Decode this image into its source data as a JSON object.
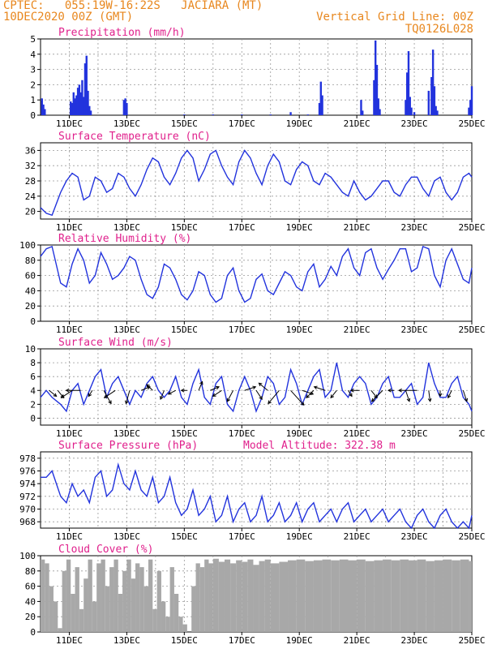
{
  "header": {
    "line1": "CPTEC:   055:19W-16:22S   JACIARA (MT)",
    "line2": "10DEC2020 00Z (GMT)",
    "right1": "Vertical Grid Line: 00Z",
    "right2": "TQ0126L028"
  },
  "colors": {
    "header": "#e8871e",
    "panel_title": "#e0208c",
    "line": "#2233dd",
    "bar": "#2233dd",
    "cloud": "#a8a8a8",
    "arrow": "#000000",
    "grid": "#999999"
  },
  "x_ticks": [
    "11DEC",
    "13DEC",
    "15DEC",
    "17DEC",
    "19DEC",
    "21DEC",
    "23DEC",
    "25DEC"
  ],
  "x_range_days": [
    10,
    25
  ],
  "chart_data": [
    {
      "type": "bar",
      "title": "Precipitation (mm/h)",
      "ylim": [
        0,
        5
      ],
      "yticks": [
        0,
        1,
        2,
        3,
        4,
        5
      ],
      "x": [
        10.05,
        10.1,
        10.15,
        11.05,
        11.1,
        11.15,
        11.2,
        11.25,
        11.3,
        11.35,
        11.4,
        11.45,
        11.5,
        11.55,
        11.6,
        11.65,
        11.7,
        11.75,
        12.9,
        12.95,
        13.0,
        15.0,
        16.0,
        17.0,
        18.0,
        18.7,
        19.3,
        19.7,
        19.75,
        19.8,
        21.15,
        21.2,
        21.6,
        21.65,
        21.7,
        21.75,
        21.8,
        22.7,
        22.75,
        22.8,
        22.85,
        22.9,
        23.0,
        23.5,
        23.6,
        23.65,
        23.7,
        23.75,
        23.8,
        24.9,
        24.95,
        25.0
      ],
      "values": [
        1.1,
        0.7,
        0.4,
        0.9,
        0.8,
        1.5,
        1.1,
        1.3,
        1.8,
        2.0,
        1.5,
        2.3,
        1.2,
        3.4,
        3.9,
        1.6,
        0.6,
        0.3,
        1.0,
        1.1,
        0.8,
        0.05,
        0.05,
        0.05,
        0.05,
        0.2,
        0.05,
        0.8,
        2.2,
        1.3,
        1.0,
        0.3,
        2.3,
        4.9,
        3.3,
        1.1,
        0.4,
        1.0,
        2.8,
        4.2,
        1.2,
        0.5,
        0.2,
        1.6,
        2.5,
        4.3,
        1.9,
        0.6,
        0.3,
        0.5,
        1.0,
        1.9
      ]
    },
    {
      "type": "line",
      "title": "Surface Temperature (nC)",
      "ylim": [
        18,
        38
      ],
      "yticks": [
        20,
        24,
        28,
        32,
        36
      ],
      "x": [
        10.0,
        10.2,
        10.4,
        10.7,
        10.9,
        11.1,
        11.3,
        11.5,
        11.7,
        11.9,
        12.1,
        12.3,
        12.5,
        12.7,
        12.9,
        13.1,
        13.3,
        13.5,
        13.7,
        13.9,
        14.1,
        14.3,
        14.5,
        14.7,
        14.9,
        15.1,
        15.3,
        15.5,
        15.7,
        15.9,
        16.1,
        16.3,
        16.5,
        16.7,
        16.9,
        17.1,
        17.3,
        17.5,
        17.7,
        17.9,
        18.1,
        18.3,
        18.5,
        18.7,
        18.9,
        19.1,
        19.3,
        19.5,
        19.7,
        19.9,
        20.1,
        20.3,
        20.5,
        20.7,
        20.9,
        21.1,
        21.3,
        21.5,
        21.7,
        21.9,
        22.1,
        22.3,
        22.5,
        22.7,
        22.9,
        23.1,
        23.3,
        23.5,
        23.7,
        23.9,
        24.1,
        24.3,
        24.5,
        24.7,
        24.9,
        25.0
      ],
      "values": [
        21,
        19.5,
        19,
        25,
        28,
        30,
        29,
        23,
        24,
        29,
        28,
        25,
        26,
        30,
        29,
        26,
        24,
        27,
        31,
        34,
        33,
        29,
        27,
        30,
        34,
        36,
        34,
        28,
        31,
        35,
        36,
        32,
        29,
        27,
        33,
        36,
        34,
        30,
        27,
        32,
        35,
        33,
        28,
        27,
        31,
        33,
        32,
        28,
        27,
        30,
        29,
        27,
        25,
        24,
        28,
        25,
        23,
        24,
        26,
        28,
        28,
        25,
        24,
        27,
        29,
        29,
        26,
        24,
        28,
        29,
        25,
        23,
        25,
        29,
        30,
        29
      ]
    },
    {
      "type": "line",
      "title": "Relative Humidity (%)",
      "ylim": [
        0,
        100
      ],
      "yticks": [
        0,
        20,
        40,
        60,
        80,
        100
      ],
      "x": [
        10.0,
        10.2,
        10.4,
        10.7,
        10.9,
        11.1,
        11.3,
        11.5,
        11.7,
        11.9,
        12.1,
        12.3,
        12.5,
        12.7,
        12.9,
        13.1,
        13.3,
        13.5,
        13.7,
        13.9,
        14.1,
        14.3,
        14.5,
        14.7,
        14.9,
        15.1,
        15.3,
        15.5,
        15.7,
        15.9,
        16.1,
        16.3,
        16.5,
        16.7,
        16.9,
        17.1,
        17.3,
        17.5,
        17.7,
        17.9,
        18.1,
        18.3,
        18.5,
        18.7,
        18.9,
        19.1,
        19.3,
        19.5,
        19.7,
        19.9,
        20.1,
        20.3,
        20.5,
        20.7,
        20.9,
        21.1,
        21.3,
        21.5,
        21.7,
        21.9,
        22.1,
        22.3,
        22.5,
        22.7,
        22.9,
        23.1,
        23.3,
        23.5,
        23.7,
        23.9,
        24.1,
        24.3,
        24.5,
        24.7,
        24.9,
        25.0
      ],
      "values": [
        85,
        95,
        98,
        50,
        45,
        75,
        95,
        80,
        50,
        60,
        90,
        75,
        55,
        60,
        70,
        85,
        80,
        55,
        35,
        30,
        45,
        75,
        70,
        55,
        35,
        28,
        40,
        65,
        60,
        35,
        25,
        30,
        60,
        70,
        40,
        25,
        30,
        55,
        62,
        40,
        35,
        50,
        65,
        60,
        45,
        40,
        65,
        75,
        45,
        55,
        72,
        60,
        85,
        95,
        70,
        60,
        90,
        95,
        70,
        55,
        68,
        80,
        95,
        95,
        65,
        70,
        98,
        95,
        60,
        45,
        80,
        95,
        75,
        55,
        50,
        70
      ]
    },
    {
      "type": "line",
      "title": "Surface Wind (m/s)",
      "ylim": [
        -1,
        10
      ],
      "yticks": [
        0,
        2,
        4,
        6,
        8,
        10
      ],
      "x": [
        10.0,
        10.2,
        10.4,
        10.7,
        10.9,
        11.1,
        11.3,
        11.5,
        11.7,
        11.9,
        12.1,
        12.3,
        12.5,
        12.7,
        12.9,
        13.1,
        13.3,
        13.5,
        13.7,
        13.9,
        14.1,
        14.3,
        14.5,
        14.7,
        14.9,
        15.1,
        15.3,
        15.5,
        15.7,
        15.9,
        16.1,
        16.3,
        16.5,
        16.7,
        16.9,
        17.1,
        17.3,
        17.5,
        17.7,
        17.9,
        18.1,
        18.3,
        18.5,
        18.7,
        18.9,
        19.1,
        19.3,
        19.5,
        19.7,
        19.9,
        20.1,
        20.3,
        20.5,
        20.7,
        20.9,
        21.1,
        21.3,
        21.5,
        21.7,
        21.9,
        22.1,
        22.3,
        22.5,
        22.7,
        22.9,
        23.1,
        23.3,
        23.5,
        23.7,
        23.9,
        24.1,
        24.3,
        24.5,
        24.7,
        24.9,
        25.0
      ],
      "values": [
        3,
        4,
        3,
        2,
        1,
        4,
        5,
        2,
        4,
        6,
        7,
        3,
        5,
        6,
        4,
        2,
        4,
        3,
        5,
        6,
        4,
        3,
        4,
        6,
        3,
        2,
        5,
        7,
        3,
        2,
        5,
        6,
        2,
        1,
        4,
        6,
        4,
        1,
        3,
        6,
        5,
        2,
        3,
        7,
        5,
        2,
        4,
        6,
        7,
        3,
        4,
        8,
        4,
        3,
        5,
        6,
        5,
        2,
        3,
        5,
        6,
        3,
        3,
        4,
        5,
        2,
        3,
        8,
        5,
        3,
        3,
        5,
        6,
        3,
        2,
        1
      ]
    },
    {
      "type": "line",
      "title": "Surface Pressure (hPa)",
      "annotation": "Model Altitude: 322.38 m",
      "ylim": [
        967,
        979
      ],
      "yticks": [
        968,
        970,
        972,
        974,
        976,
        978
      ],
      "x": [
        10.0,
        10.2,
        10.4,
        10.7,
        10.9,
        11.1,
        11.3,
        11.5,
        11.7,
        11.9,
        12.1,
        12.3,
        12.5,
        12.7,
        12.9,
        13.1,
        13.3,
        13.5,
        13.7,
        13.9,
        14.1,
        14.3,
        14.5,
        14.7,
        14.9,
        15.1,
        15.3,
        15.5,
        15.7,
        15.9,
        16.1,
        16.3,
        16.5,
        16.7,
        16.9,
        17.1,
        17.3,
        17.5,
        17.7,
        17.9,
        18.1,
        18.3,
        18.5,
        18.7,
        18.9,
        19.1,
        19.3,
        19.5,
        19.7,
        19.9,
        20.1,
        20.3,
        20.5,
        20.7,
        20.9,
        21.1,
        21.3,
        21.5,
        21.7,
        21.9,
        22.1,
        22.3,
        22.5,
        22.7,
        22.9,
        23.1,
        23.3,
        23.5,
        23.7,
        23.9,
        24.1,
        24.3,
        24.5,
        24.7,
        24.9,
        25.0
      ],
      "values": [
        975,
        975,
        976,
        972,
        971,
        974,
        972,
        973,
        971,
        975,
        976,
        972,
        973,
        977,
        974,
        973,
        976,
        973,
        972,
        975,
        971,
        972,
        975,
        971,
        969,
        970,
        973,
        969,
        970,
        972,
        968,
        969,
        972,
        968,
        970,
        971,
        968,
        969,
        972,
        968,
        969,
        971,
        968,
        969,
        971,
        968,
        970,
        971,
        968,
        969,
        970,
        968,
        970,
        971,
        968,
        969,
        970,
        968,
        969,
        970,
        968,
        969,
        970,
        968,
        967,
        969,
        970,
        968,
        967,
        969,
        970,
        968,
        967,
        968,
        967,
        969
      ]
    },
    {
      "type": "area",
      "title": "Cloud Cover (%)",
      "ylim": [
        0,
        100
      ],
      "yticks": [
        0,
        20,
        40,
        60,
        80,
        100
      ],
      "x": [
        10.0,
        10.15,
        10.3,
        10.45,
        10.6,
        10.75,
        10.9,
        11.05,
        11.2,
        11.35,
        11.5,
        11.65,
        11.8,
        11.95,
        12.1,
        12.25,
        12.4,
        12.55,
        12.7,
        12.85,
        13.0,
        13.15,
        13.3,
        13.45,
        13.6,
        13.75,
        13.9,
        14.05,
        14.2,
        14.35,
        14.5,
        14.65,
        14.8,
        14.95,
        15.1,
        15.25,
        15.4,
        15.55,
        15.7,
        15.85,
        16.0,
        16.2,
        16.4,
        16.6,
        16.8,
        17.0,
        17.2,
        17.4,
        17.6,
        17.8,
        18.0,
        18.3,
        18.6,
        18.9,
        19.2,
        19.5,
        19.8,
        20.1,
        20.4,
        20.7,
        21.0,
        21.3,
        21.6,
        21.9,
        22.2,
        22.5,
        22.8,
        23.1,
        23.4,
        23.7,
        24.0,
        24.3,
        24.6,
        24.9,
        25.0
      ],
      "values": [
        95,
        90,
        60,
        40,
        5,
        80,
        95,
        50,
        85,
        30,
        70,
        95,
        40,
        90,
        95,
        60,
        85,
        95,
        50,
        80,
        95,
        70,
        90,
        85,
        60,
        95,
        30,
        80,
        40,
        20,
        85,
        50,
        20,
        10,
        0,
        60,
        90,
        85,
        95,
        90,
        96,
        92,
        95,
        90,
        94,
        92,
        95,
        88,
        93,
        95,
        90,
        92,
        94,
        95,
        93,
        94,
        95,
        94,
        95,
        94,
        95,
        93,
        94,
        95,
        94,
        95,
        94,
        95,
        93,
        94,
        95,
        94,
        95,
        93,
        94
      ]
    }
  ],
  "wind_vectors": {
    "x": [
      10.3,
      10.6,
      11.1,
      11.4,
      11.8,
      12.2,
      12.6,
      13.1,
      13.5,
      13.9,
      14.3,
      14.7,
      15.1,
      15.5,
      15.9,
      16.3,
      16.7,
      17.1,
      17.5,
      17.9,
      18.3,
      18.7,
      19.1,
      19.5,
      19.9,
      20.3,
      20.7,
      21.1,
      21.5,
      21.9,
      22.3,
      22.7,
      23.1,
      23.5,
      23.9,
      24.3,
      24.7
    ],
    "u": [
      1.0,
      0.8,
      -1.5,
      -2.0,
      -0.5,
      1.0,
      -1.5,
      -0.5,
      1.2,
      -0.8,
      -0.5,
      -1.0,
      -0.8,
      0.5,
      1.2,
      -1.2,
      -0.8,
      1.5,
      0.8,
      -1.2,
      -1.5,
      1.8,
      1.5,
      -1.0,
      -1.5,
      -0.8,
      0.5,
      -1.2,
      0.8,
      -1.5,
      -0.8,
      0.5,
      -2.5,
      0.2,
      0.0,
      -0.5,
      0.5
    ],
    "v": [
      -0.8,
      -1.0,
      -1.0,
      0.0,
      -0.8,
      -1.8,
      -1.0,
      -1.8,
      0.5,
      0.8,
      -1.2,
      -0.5,
      0.0,
      1.2,
      0.5,
      -0.8,
      -1.5,
      0.5,
      -1.2,
      1.0,
      -1.8,
      -2.0,
      -0.5,
      -1.0,
      0.5,
      -1.0,
      -0.8,
      0.0,
      -1.0,
      -1.5,
      0.0,
      -1.5,
      0.0,
      -1.5,
      -0.8,
      -1.0,
      -1.5
    ]
  }
}
